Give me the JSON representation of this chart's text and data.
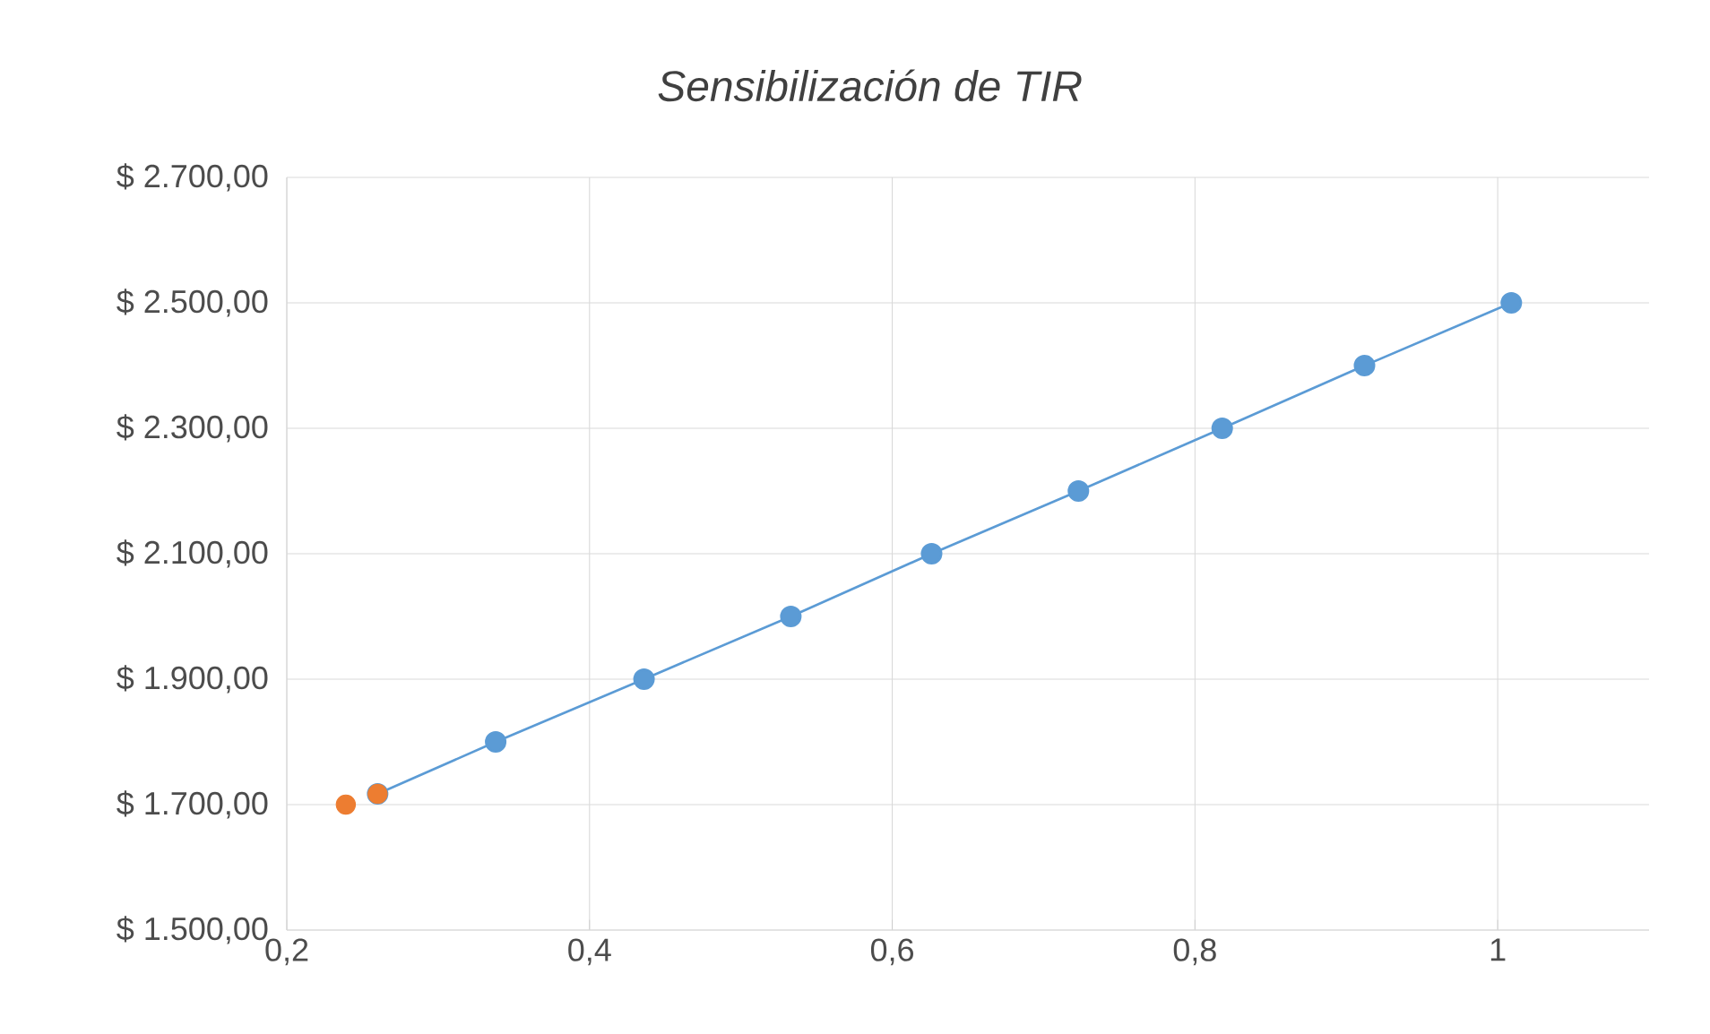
{
  "chart_data": {
    "type": "line",
    "title": "Sensibilización de TIR",
    "grid": true,
    "marker": "circle",
    "line_style": "solid",
    "xlim": [
      0.2,
      1.1
    ],
    "ylim": [
      1500,
      2700
    ],
    "xticks": [
      {
        "value": 0.2,
        "label": "0,2"
      },
      {
        "value": 0.4,
        "label": "0,4"
      },
      {
        "value": 0.6,
        "label": "0,6"
      },
      {
        "value": 0.8,
        "label": "0,8"
      },
      {
        "value": 1,
        "label": "1"
      }
    ],
    "yticks": [
      {
        "value": 1500,
        "label": "$ 1.500,00"
      },
      {
        "value": 1700,
        "label": "$ 1.700,00"
      },
      {
        "value": 1900,
        "label": "$ 1.900,00"
      },
      {
        "value": 2100,
        "label": "$ 2.100,00"
      },
      {
        "value": 2300,
        "label": "$ 2.300,00"
      },
      {
        "value": 2500,
        "label": "$ 2.500,00"
      },
      {
        "value": 2700,
        "label": "$ 2.700,00"
      }
    ],
    "series": [
      {
        "color": "#5b9bd5",
        "x": [
          0.26,
          0.338,
          0.436,
          0.533,
          0.626,
          0.723,
          0.818,
          0.912,
          1.009
        ],
        "values": [
          1717,
          1800,
          1900,
          2000,
          2100,
          2200,
          2300,
          2400,
          2500
        ]
      },
      {
        "type": "scatter",
        "color": "#ed7d31",
        "x": [
          0.239,
          0.26
        ],
        "values": [
          1700,
          1717
        ]
      }
    ]
  }
}
